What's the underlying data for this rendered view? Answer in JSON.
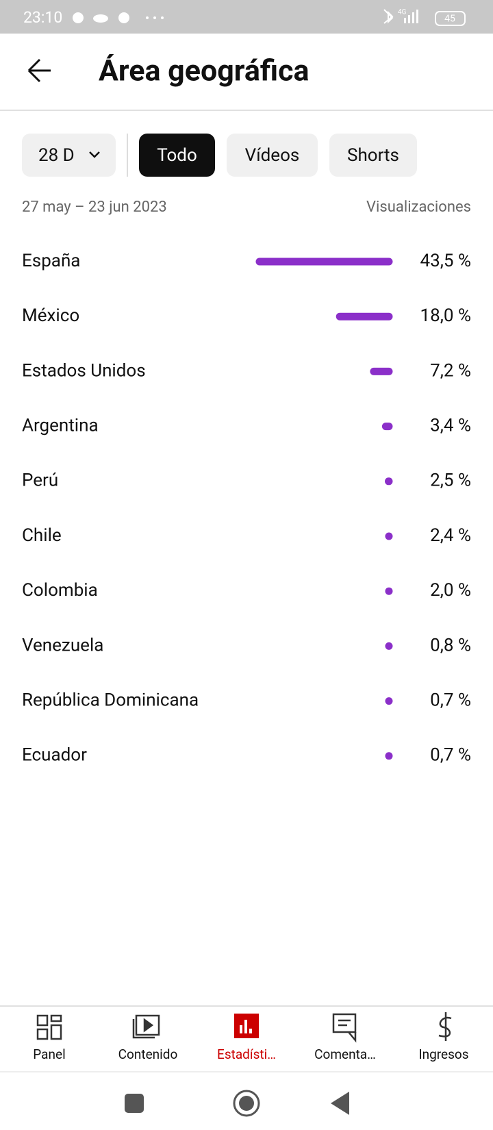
{
  "status_bar": {
    "time": "23:10",
    "network": "4G",
    "battery": "45"
  },
  "header": {
    "title": "Área geográfica"
  },
  "filters": {
    "period": "28 D",
    "tabs": [
      "Todo",
      "Vídeos",
      "Shorts"
    ],
    "selected": 0
  },
  "summary": {
    "date_range": "27 may – 23 jun 2023",
    "metric": "Visualizaciones"
  },
  "chart_data": {
    "type": "bar",
    "orientation": "horizontal",
    "categories": [
      "España",
      "México",
      "Estados Unidos",
      "Argentina",
      "Perú",
      "Chile",
      "Colombia",
      "Venezuela",
      "República Dominicana",
      "Ecuador"
    ],
    "values": [
      43.5,
      18.0,
      7.2,
      3.4,
      2.5,
      2.4,
      2.0,
      0.8,
      0.7,
      0.7
    ],
    "value_labels": [
      "43,5 %",
      "18,0 %",
      "7,2 %",
      "3,4 %",
      "2,5 %",
      "2,4 %",
      "2,0 %",
      "0,8 %",
      "0,7 %",
      "0,7 %"
    ],
    "color": "#8b2fc9"
  },
  "nav": {
    "items": [
      "Panel",
      "Contenido",
      "Estadísti…",
      "Comenta…",
      "Ingresos"
    ],
    "selected": 2
  }
}
